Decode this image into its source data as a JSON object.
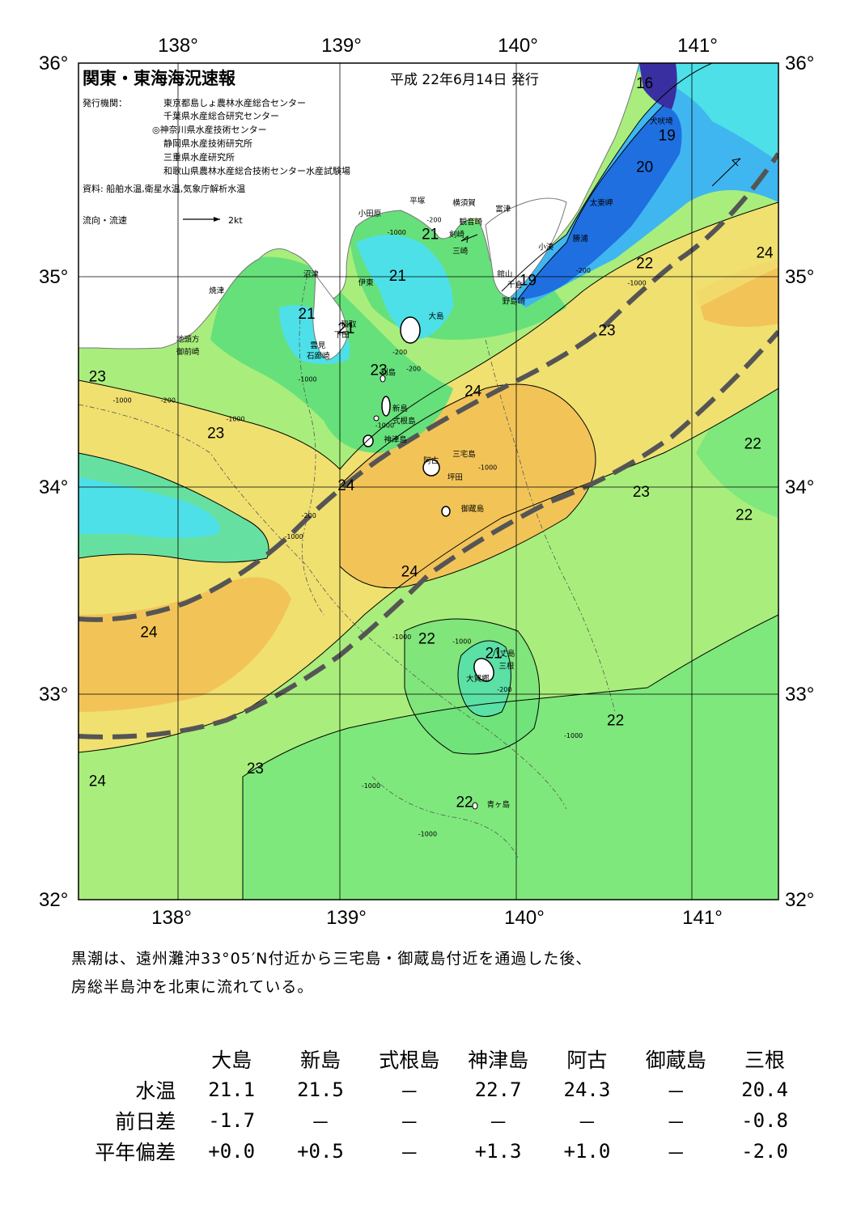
{
  "header": {
    "title": "関東・東海海況速報",
    "date": "平成 22年6月14日 発行",
    "issuer_label": "発行機関：",
    "issuers": [
      "東京都島しょ農林水産総合センター",
      "千葉県水産総合研究センター",
      "◎神奈川県水産技術センター",
      "静岡県水産技術研究所",
      "三重県水産研究所",
      "和歌山県農林水産総合技術センター水産試験場"
    ],
    "source": "資料: 船舶水温,衛星水温,気象庁解析水温",
    "flow_label": "流向・流速",
    "flow_scale": "2kt"
  },
  "axes": {
    "lon_labels": [
      "138°",
      "139°",
      "140°",
      "141°"
    ],
    "lat_labels": [
      "36°",
      "35°",
      "34°",
      "33°",
      "32°"
    ]
  },
  "colors": {
    "t16": "#3a2fa0",
    "t19": "#1f6fe0",
    "t20": "#3fb6f0",
    "t21": "#4de0e8",
    "t22": "#66e07a",
    "t23": "#a9ee7c",
    "t24": "#f0e070",
    "t25": "#f2c458",
    "land": "#ffffff",
    "kuroshio": "#555555"
  },
  "isotherm_labels": [
    {
      "text": "16",
      "lon": 140.72,
      "lat": 35.9
    },
    {
      "text": "19",
      "lon": 140.85,
      "lat": 35.65
    },
    {
      "text": "20",
      "lon": 140.72,
      "lat": 35.5
    },
    {
      "text": "21",
      "lon": 139.47,
      "lat": 35.18
    },
    {
      "text": "21",
      "lon": 139.28,
      "lat": 34.98
    },
    {
      "text": "21",
      "lon": 138.75,
      "lat": 34.8
    },
    {
      "text": "21",
      "lon": 138.98,
      "lat": 34.73
    },
    {
      "text": "19",
      "lon": 140.04,
      "lat": 34.96
    },
    {
      "text": "22",
      "lon": 140.72,
      "lat": 35.04
    },
    {
      "text": "24",
      "lon": 141.42,
      "lat": 35.09
    },
    {
      "text": "23",
      "lon": 140.5,
      "lat": 34.72
    },
    {
      "text": "23",
      "lon": 139.17,
      "lat": 34.53
    },
    {
      "text": "23",
      "lon": 137.53,
      "lat": 34.5
    },
    {
      "text": "24",
      "lon": 139.72,
      "lat": 34.43
    },
    {
      "text": "23",
      "lon": 138.22,
      "lat": 34.23
    },
    {
      "text": "22",
      "lon": 141.35,
      "lat": 34.18
    },
    {
      "text": "24",
      "lon": 138.98,
      "lat": 33.98
    },
    {
      "text": "23",
      "lon": 140.7,
      "lat": 33.95
    },
    {
      "text": "22",
      "lon": 141.3,
      "lat": 33.84
    },
    {
      "text": "24",
      "lon": 139.35,
      "lat": 33.57
    },
    {
      "text": "24",
      "lon": 137.83,
      "lat": 33.28
    },
    {
      "text": "22",
      "lon": 139.45,
      "lat": 33.25
    },
    {
      "text": "21",
      "lon": 139.84,
      "lat": 33.18
    },
    {
      "text": "22",
      "lon": 140.55,
      "lat": 32.86
    },
    {
      "text": "23",
      "lon": 138.45,
      "lat": 32.63
    },
    {
      "text": "24",
      "lon": 137.53,
      "lat": 32.57
    },
    {
      "text": "22",
      "lon": 139.67,
      "lat": 32.47
    }
  ],
  "places": [
    {
      "text": "犬吠埼",
      "lon": 140.75,
      "lat": 35.73
    },
    {
      "text": "太東岬",
      "lon": 140.4,
      "lat": 35.34
    },
    {
      "text": "勝浦",
      "lon": 140.3,
      "lat": 35.17
    },
    {
      "text": "小湊",
      "lon": 140.1,
      "lat": 35.13
    },
    {
      "text": "富津",
      "lon": 139.85,
      "lat": 35.31
    },
    {
      "text": "館山",
      "lon": 139.86,
      "lat": 35.0
    },
    {
      "text": "千倉",
      "lon": 139.92,
      "lat": 34.95
    },
    {
      "text": "野島崎",
      "lon": 139.89,
      "lat": 34.87
    },
    {
      "text": "横須賀",
      "lon": 139.6,
      "lat": 35.34
    },
    {
      "text": "観音崎",
      "lon": 139.64,
      "lat": 35.25
    },
    {
      "text": "剣崎",
      "lon": 139.58,
      "lat": 35.19
    },
    {
      "text": "三崎",
      "lon": 139.6,
      "lat": 35.11
    },
    {
      "text": "平塚",
      "lon": 139.35,
      "lat": 35.35
    },
    {
      "text": "小田原",
      "lon": 139.05,
      "lat": 35.29
    },
    {
      "text": "沼津",
      "lon": 138.73,
      "lat": 35.0
    },
    {
      "text": "伊東",
      "lon": 139.05,
      "lat": 34.96
    },
    {
      "text": "焼津",
      "lon": 138.18,
      "lat": 34.92
    },
    {
      "text": "地頭方",
      "lon": 137.99,
      "lat": 34.69
    },
    {
      "text": "御前崎",
      "lon": 137.99,
      "lat": 34.63
    },
    {
      "text": "稲取",
      "lon": 138.95,
      "lat": 34.76
    },
    {
      "text": "下田",
      "lon": 138.91,
      "lat": 34.71
    },
    {
      "text": "雲見",
      "lon": 138.77,
      "lat": 34.66
    },
    {
      "text": "石廊崎",
      "lon": 138.75,
      "lat": 34.61
    },
    {
      "text": "大島",
      "lon": 139.46,
      "lat": 34.8
    },
    {
      "text": "利島",
      "lon": 139.18,
      "lat": 34.53
    },
    {
      "text": "新島",
      "lon": 139.25,
      "lat": 34.36
    },
    {
      "text": "式根島",
      "lon": 139.25,
      "lat": 34.3
    },
    {
      "text": "神津島",
      "lon": 139.2,
      "lat": 34.21
    },
    {
      "text": "三宅島",
      "lon": 139.6,
      "lat": 34.14
    },
    {
      "text": "阿古",
      "lon": 139.43,
      "lat": 34.11
    },
    {
      "text": "坪田",
      "lon": 139.57,
      "lat": 34.03
    },
    {
      "text": "御蔵島",
      "lon": 139.65,
      "lat": 33.88
    },
    {
      "text": "八丈島",
      "lon": 139.83,
      "lat": 33.19
    },
    {
      "text": "三根",
      "lon": 139.87,
      "lat": 33.13
    },
    {
      "text": "大賀郷",
      "lon": 139.68,
      "lat": 33.07
    },
    {
      "text": "青ヶ島",
      "lon": 139.8,
      "lat": 32.47
    }
  ],
  "depth_labels": [
    {
      "text": "-200",
      "lon": 139.45,
      "lat": 35.26
    },
    {
      "text": "-1000",
      "lon": 139.22,
      "lat": 35.2
    },
    {
      "text": "-200",
      "lon": 140.32,
      "lat": 35.02
    },
    {
      "text": "-1000",
      "lon": 140.62,
      "lat": 34.96
    },
    {
      "text": "-1000",
      "lon": 137.62,
      "lat": 34.4
    },
    {
      "text": "-200",
      "lon": 137.9,
      "lat": 34.4
    },
    {
      "text": "-1000",
      "lon": 138.28,
      "lat": 34.31
    },
    {
      "text": "-1000",
      "lon": 138.7,
      "lat": 34.5
    },
    {
      "text": "-200",
      "lon": 139.33,
      "lat": 34.55
    },
    {
      "text": "-200",
      "lon": 139.25,
      "lat": 34.63
    },
    {
      "text": "-1000",
      "lon": 139.15,
      "lat": 34.28
    },
    {
      "text": "-1000",
      "lon": 139.75,
      "lat": 34.08
    },
    {
      "text": "-200",
      "lon": 138.72,
      "lat": 33.85
    },
    {
      "text": "-1000",
      "lon": 138.62,
      "lat": 33.75
    },
    {
      "text": "-1000",
      "lon": 139.25,
      "lat": 33.27
    },
    {
      "text": "-1000",
      "lon": 139.6,
      "lat": 33.25
    },
    {
      "text": "-200",
      "lon": 139.86,
      "lat": 33.02
    },
    {
      "text": "-1000",
      "lon": 140.25,
      "lat": 32.8
    },
    {
      "text": "-1000",
      "lon": 139.07,
      "lat": 32.56
    },
    {
      "text": "-1000",
      "lon": 139.4,
      "lat": 32.33
    }
  ],
  "summary": [
    "黒潮は、遠州灘沖33°05′N付近から三宅島・御蔵島付近を通過した後、",
    "房総半島沖を北東に流れている。"
  ],
  "table": {
    "columns": [
      "大島",
      "新島",
      "式根島",
      "神津島",
      "阿古",
      "御蔵島",
      "三根"
    ],
    "rows": [
      {
        "label": "水温",
        "values": [
          "21.1",
          "21.5",
          "－",
          "22.7",
          "24.3",
          "－",
          "20.4"
        ]
      },
      {
        "label": "前日差",
        "values": [
          "-1.7",
          "－",
          "－",
          "－",
          "－",
          "－",
          "-0.8"
        ]
      },
      {
        "label": "平年偏差",
        "values": [
          "+0.0",
          "+0.5",
          "－",
          "+1.3",
          "+1.0",
          "－",
          "-2.0"
        ]
      }
    ]
  }
}
